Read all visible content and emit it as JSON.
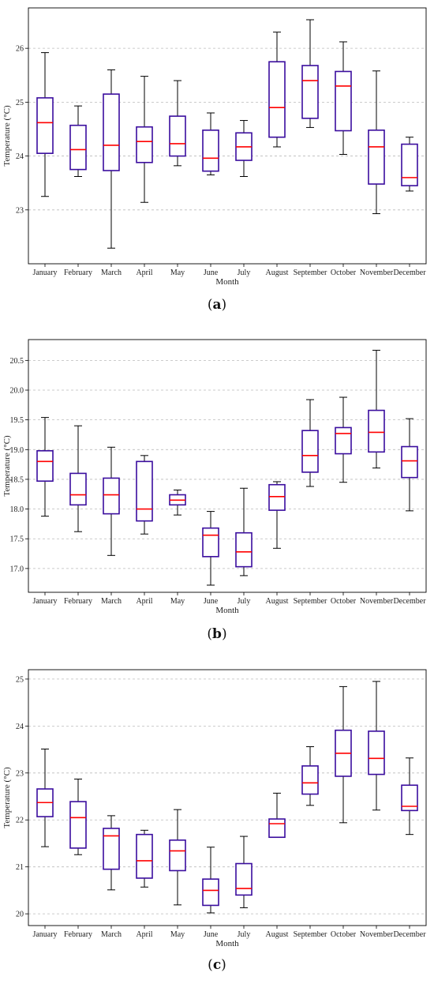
{
  "charts": [
    {
      "caption_open": "(",
      "caption_letter": "a",
      "caption_close": ")",
      "chart_data": {
        "type": "box",
        "title": "",
        "xlabel": "Month",
        "ylabel": "Temperature (°C)",
        "categories": [
          "January",
          "February",
          "March",
          "April",
          "May",
          "June",
          "July",
          "August",
          "September",
          "October",
          "November",
          "December"
        ],
        "yticks": [
          23,
          24,
          25,
          26
        ],
        "ylim": [
          22,
          26.75
        ],
        "grid": "horizontal dashed",
        "colors": {
          "box": "#3a0d9e",
          "median": "#ff0000",
          "whisker": "#000000",
          "grid": "#bbbbbb"
        },
        "boxes": [
          {
            "whislo": 23.25,
            "q1": 24.05,
            "med": 24.62,
            "q3": 25.08,
            "whishi": 25.92
          },
          {
            "whislo": 23.62,
            "q1": 23.75,
            "med": 24.12,
            "q3": 24.57,
            "whishi": 24.93
          },
          {
            "whislo": 22.29,
            "q1": 23.73,
            "med": 24.2,
            "q3": 25.15,
            "whishi": 25.6
          },
          {
            "whislo": 23.14,
            "q1": 23.88,
            "med": 24.27,
            "q3": 24.54,
            "whishi": 25.48
          },
          {
            "whislo": 23.82,
            "q1": 24.0,
            "med": 24.23,
            "q3": 24.74,
            "whishi": 25.4
          },
          {
            "whislo": 23.65,
            "q1": 23.72,
            "med": 23.96,
            "q3": 24.48,
            "whishi": 24.8
          },
          {
            "whislo": 23.62,
            "q1": 23.92,
            "med": 24.17,
            "q3": 24.43,
            "whishi": 24.66
          },
          {
            "whislo": 24.17,
            "q1": 24.35,
            "med": 24.9,
            "q3": 25.75,
            "whishi": 26.3
          },
          {
            "whislo": 24.53,
            "q1": 24.7,
            "med": 25.4,
            "q3": 25.68,
            "whishi": 26.53
          },
          {
            "whislo": 24.03,
            "q1": 24.47,
            "med": 25.3,
            "q3": 25.57,
            "whishi": 26.12
          },
          {
            "whislo": 22.93,
            "q1": 23.48,
            "med": 24.17,
            "q3": 24.48,
            "whishi": 25.58
          },
          {
            "whislo": 23.35,
            "q1": 23.45,
            "med": 23.6,
            "q3": 24.22,
            "whishi": 24.35
          }
        ]
      }
    },
    {
      "caption_open": "(",
      "caption_letter": "b",
      "caption_close": ")",
      "chart_data": {
        "type": "box",
        "title": "",
        "xlabel": "Month",
        "ylabel": "Temperature (°C)",
        "categories": [
          "January",
          "February",
          "March",
          "April",
          "May",
          "June",
          "July",
          "August",
          "September",
          "October",
          "November",
          "December"
        ],
        "yticks": [
          17.0,
          17.5,
          18.0,
          18.5,
          19.0,
          19.5,
          20.0,
          20.5
        ],
        "ylim": [
          16.6,
          20.85
        ],
        "grid": "horizontal dashed",
        "colors": {
          "box": "#3a0d9e",
          "median": "#ff0000",
          "whisker": "#000000",
          "grid": "#bbbbbb"
        },
        "boxes": [
          {
            "whislo": 17.88,
            "q1": 18.47,
            "med": 18.8,
            "q3": 18.98,
            "whishi": 19.54
          },
          {
            "whislo": 17.62,
            "q1": 18.07,
            "med": 18.24,
            "q3": 18.6,
            "whishi": 19.4
          },
          {
            "whislo": 17.22,
            "q1": 17.92,
            "med": 18.24,
            "q3": 18.52,
            "whishi": 19.04
          },
          {
            "whislo": 17.58,
            "q1": 17.8,
            "med": 18.0,
            "q3": 18.8,
            "whishi": 18.9
          },
          {
            "whislo": 17.9,
            "q1": 18.07,
            "med": 18.15,
            "q3": 18.24,
            "whishi": 18.32
          },
          {
            "whislo": 16.72,
            "q1": 17.2,
            "med": 17.56,
            "q3": 17.68,
            "whishi": 17.96
          },
          {
            "whislo": 16.88,
            "q1": 17.03,
            "med": 17.28,
            "q3": 17.6,
            "whishi": 18.35
          },
          {
            "whislo": 17.34,
            "q1": 17.98,
            "med": 18.21,
            "q3": 18.41,
            "whishi": 18.46
          },
          {
            "whislo": 18.38,
            "q1": 18.62,
            "med": 18.9,
            "q3": 19.32,
            "whishi": 19.84
          },
          {
            "whislo": 18.45,
            "q1": 18.93,
            "med": 19.27,
            "q3": 19.37,
            "whishi": 19.88
          },
          {
            "whislo": 18.69,
            "q1": 18.96,
            "med": 19.29,
            "q3": 19.66,
            "whishi": 20.67
          },
          {
            "whislo": 17.97,
            "q1": 18.53,
            "med": 18.81,
            "q3": 19.05,
            "whishi": 19.52
          }
        ]
      }
    },
    {
      "caption_open": "(",
      "caption_letter": "c",
      "caption_close": ")",
      "chart_data": {
        "type": "box",
        "title": "",
        "xlabel": "Month",
        "ylabel": "Temperature (°C)",
        "categories": [
          "January",
          "February",
          "March",
          "April",
          "May",
          "June",
          "July",
          "August",
          "September",
          "October",
          "November",
          "December"
        ],
        "yticks": [
          20,
          21,
          22,
          23,
          24,
          25
        ],
        "ylim": [
          19.75,
          25.2
        ],
        "grid": "horizontal dashed",
        "colors": {
          "box": "#3a0d9e",
          "median": "#ff0000",
          "whisker": "#000000",
          "grid": "#bbbbbb"
        },
        "boxes": [
          {
            "whislo": 21.43,
            "q1": 22.07,
            "med": 22.37,
            "q3": 22.66,
            "whishi": 23.51
          },
          {
            "whislo": 21.26,
            "q1": 21.4,
            "med": 22.05,
            "q3": 22.39,
            "whishi": 22.87
          },
          {
            "whislo": 20.51,
            "q1": 20.95,
            "med": 21.66,
            "q3": 21.82,
            "whishi": 22.09
          },
          {
            "whislo": 20.57,
            "q1": 20.76,
            "med": 21.13,
            "q3": 21.69,
            "whishi": 21.78
          },
          {
            "whislo": 20.19,
            "q1": 20.92,
            "med": 21.34,
            "q3": 21.57,
            "whishi": 22.22
          },
          {
            "whislo": 20.02,
            "q1": 20.18,
            "med": 20.5,
            "q3": 20.74,
            "whishi": 21.42
          },
          {
            "whislo": 20.13,
            "q1": 20.4,
            "med": 20.54,
            "q3": 21.07,
            "whishi": 21.65
          },
          {
            "whislo": 21.63,
            "q1": 21.63,
            "med": 21.92,
            "q3": 22.02,
            "whishi": 22.57
          },
          {
            "whislo": 22.31,
            "q1": 22.55,
            "med": 22.79,
            "q3": 23.15,
            "whishi": 23.56
          },
          {
            "whislo": 21.94,
            "q1": 22.93,
            "med": 23.42,
            "q3": 23.91,
            "whishi": 24.84
          },
          {
            "whislo": 22.21,
            "q1": 22.97,
            "med": 23.31,
            "q3": 23.89,
            "whishi": 24.95
          },
          {
            "whislo": 21.69,
            "q1": 22.2,
            "med": 22.29,
            "q3": 22.74,
            "whishi": 23.32
          }
        ]
      }
    }
  ]
}
